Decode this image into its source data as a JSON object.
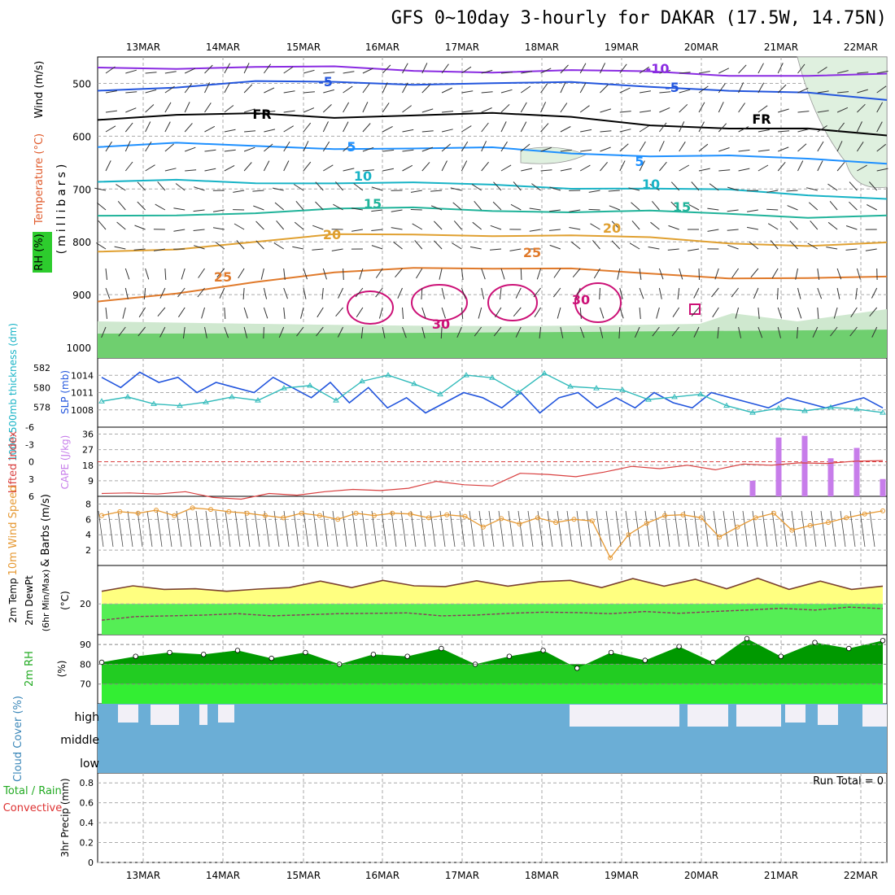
{
  "title": "GFS 0~10day 3-hourly for DAKAR (17.5W, 14.75N)",
  "chart_data": {
    "type": "line",
    "x": [
      "13MAR",
      "14MAR",
      "15MAR",
      "16MAR",
      "17MAR",
      "18MAR",
      "19MAR",
      "20MAR",
      "21MAR",
      "22MAR"
    ],
    "colors": {
      "wind_line": "#e69933",
      "cape": "#c77dea",
      "lifted": "#d94040",
      "slp": "#2255dd",
      "thickness": "#33bbbb",
      "tempfill": "#ffff80",
      "dewfill": "#55ee55",
      "rh_dark": "#009900",
      "rh_mid": "#22cc22",
      "rh_light": "#33ee33",
      "cloud": "#6baed6",
      "cloud_clear": "#f2f0f7"
    },
    "panels": {
      "upper": {
        "ylabel": "(millibars)",
        "ylabels_left": [
          "Wind (m/s)",
          "Temperature (°C)",
          "RH (%)"
        ],
        "yticks": [
          500,
          600,
          700,
          800,
          900,
          1000
        ],
        "contour_labels": [
          "-10",
          "-5",
          "FR",
          "5",
          "10",
          "15",
          "20",
          "25",
          "30",
          "-5",
          "FR",
          "5",
          "10",
          "15",
          "20",
          "25",
          "30"
        ],
        "temperature_isotherms": [
          {
            "label": "-10",
            "level": [
              470,
              468,
              470,
              472,
              474,
              476,
              478,
              480,
              482,
              484,
              486
            ]
          },
          {
            "label": "-5",
            "level": [
              510,
              506,
              500,
              498,
              498,
              500,
              502,
              505,
              510,
              520,
              535
            ]
          },
          {
            "label": "FR",
            "level": [
              565,
              562,
              560,
              562,
              558,
              560,
              565,
              575,
              585,
              590,
              598
            ]
          },
          {
            "label": "5",
            "level": [
              620,
              617,
              618,
              620,
              625,
              625,
              630,
              635,
              640,
              645,
              648
            ]
          },
          {
            "label": "10",
            "level": [
              690,
              685,
              685,
              688,
              692,
              692,
              695,
              700,
              705,
              710,
              715
            ]
          },
          {
            "label": "15",
            "level": [
              755,
              748,
              742,
              740,
              738,
              738,
              742,
              745,
              748,
              750,
              750
            ]
          },
          {
            "label": "20",
            "level": [
              820,
              810,
              800,
              790,
              785,
              785,
              790,
              795,
              800,
              805,
              805
            ]
          },
          {
            "label": "25",
            "level": [
              910,
              895,
              880,
              860,
              845,
              850,
              855,
              860,
              865,
              870,
              870
            ]
          }
        ]
      },
      "slp": {
        "ylabels": [
          "1000-500mb thickness (dm)",
          "SLP (mb)"
        ],
        "thickness_ticks": [
          578,
          580,
          582
        ],
        "slp_ticks": [
          1008,
          1011,
          1014
        ],
        "slp": [
          1014,
          1012,
          1015,
          1013,
          1014,
          1011,
          1013,
          1012,
          1011,
          1014,
          1012,
          1010,
          1013,
          1009,
          1012,
          1008,
          1010,
          1007,
          1009,
          1011,
          1010,
          1008,
          1011,
          1007,
          1010,
          1011,
          1008,
          1010,
          1008,
          1011,
          1009,
          1008,
          1011,
          1010,
          1009,
          1008,
          1010,
          1009,
          1008,
          1009,
          1010,
          1008
        ],
        "thickness": [
          578.5,
          579,
          578.2,
          578,
          578.4,
          579,
          578.6,
          580,
          580.3,
          578.6,
          580.8,
          581.5,
          580.5,
          579.3,
          581.5,
          581.2,
          579.5,
          581.7,
          580.2,
          580,
          579.8,
          578.7,
          579,
          579.3,
          578,
          577.2,
          577.7,
          577.4,
          577.8,
          577.6,
          577.2
        ]
      },
      "cape_li": {
        "ylabels": [
          "Lifted Index",
          "CAPE (J/kg)"
        ],
        "li_ticks": [
          6,
          3,
          0,
          -3,
          -6
        ],
        "cape_ticks": [
          9,
          18,
          27,
          36
        ],
        "lifted_index": [
          5.5,
          5.4,
          5.6,
          5.2,
          6.2,
          6.5,
          5.5,
          5.8,
          5.2,
          4.8,
          5,
          4.6,
          3.4,
          4,
          4.2,
          2,
          2.2,
          2.6,
          1.8,
          0.8,
          1.2,
          0.6,
          1.4,
          0.4,
          0.6,
          0.2,
          0.3,
          -0.1,
          -0.2
        ],
        "cape": [
          0,
          0,
          0,
          0,
          0,
          0,
          0,
          0,
          0,
          0,
          0,
          0,
          0,
          0,
          0,
          0,
          0,
          0,
          0,
          0,
          0,
          0,
          0,
          0,
          0,
          9,
          34,
          35,
          22,
          28,
          10
        ]
      },
      "wind10m": {
        "ylabels": [
          "10m Wind Speed",
          "& Barbs (m/s)"
        ],
        "yticks": [
          2,
          4,
          6,
          8
        ],
        "speed": [
          6.5,
          7,
          6.8,
          7.2,
          6.5,
          7.5,
          7.3,
          7,
          6.8,
          6.5,
          6.2,
          6.8,
          6.5,
          6,
          6.8,
          6.5,
          6.8,
          6.7,
          6.2,
          6.6,
          6.4,
          5,
          6.1,
          5.4,
          6.2,
          5.6,
          6,
          5.8,
          1,
          4,
          5.5,
          6.5,
          6.6,
          6.2,
          3.7,
          5,
          6.2,
          6.8,
          4.6,
          5.2,
          5.6,
          6.2,
          6.7,
          7.1
        ]
      },
      "temp2m": {
        "ylabels": [
          "2m Temp",
          "2m DewPt",
          "(6hr Min/Max)",
          "(°C)"
        ],
        "yticks": [
          20
        ],
        "temperature": [
          24,
          25.5,
          24.5,
          24.7,
          24,
          24.6,
          25,
          26.8,
          25,
          27,
          25.5,
          25.3,
          26.9,
          25.4,
          26.6,
          27,
          25,
          27.5,
          25.4,
          27.3,
          24.7,
          27.6,
          24.5,
          26.8,
          24.5,
          25.4
        ],
        "dewpoint": [
          16,
          17,
          17.2,
          17.4,
          17.8,
          17.2,
          17.5,
          17.8,
          17.9,
          18,
          17.2,
          17.4,
          17.9,
          18.2,
          18.1,
          17.8,
          18.4,
          17.9,
          18.4,
          18.8,
          19.3,
          18.8,
          19.6,
          19.2
        ]
      },
      "rh2m": {
        "ylabels": [
          "2m RH",
          "(%)"
        ],
        "yticks": [
          70,
          80,
          90
        ],
        "rh": [
          81,
          84,
          86,
          85,
          87,
          83,
          86,
          80,
          85,
          84,
          88,
          80,
          84,
          87,
          78,
          86,
          82,
          89,
          81,
          93,
          84,
          91,
          88,
          92
        ]
      },
      "cloud": {
        "ylabel": "Cloud Cover (%)",
        "levels": [
          "high",
          "middle",
          "low"
        ]
      },
      "precip": {
        "ylabels": [
          "Total / Rain",
          "Convective",
          "3hr Precip (mm)"
        ],
        "yticks": [
          0,
          0.2,
          0.4,
          0.6,
          0.8
        ],
        "values": [
          0,
          0,
          0,
          0,
          0,
          0,
          0,
          0,
          0,
          0
        ],
        "run_total_label": "Run Total = 0"
      }
    }
  }
}
